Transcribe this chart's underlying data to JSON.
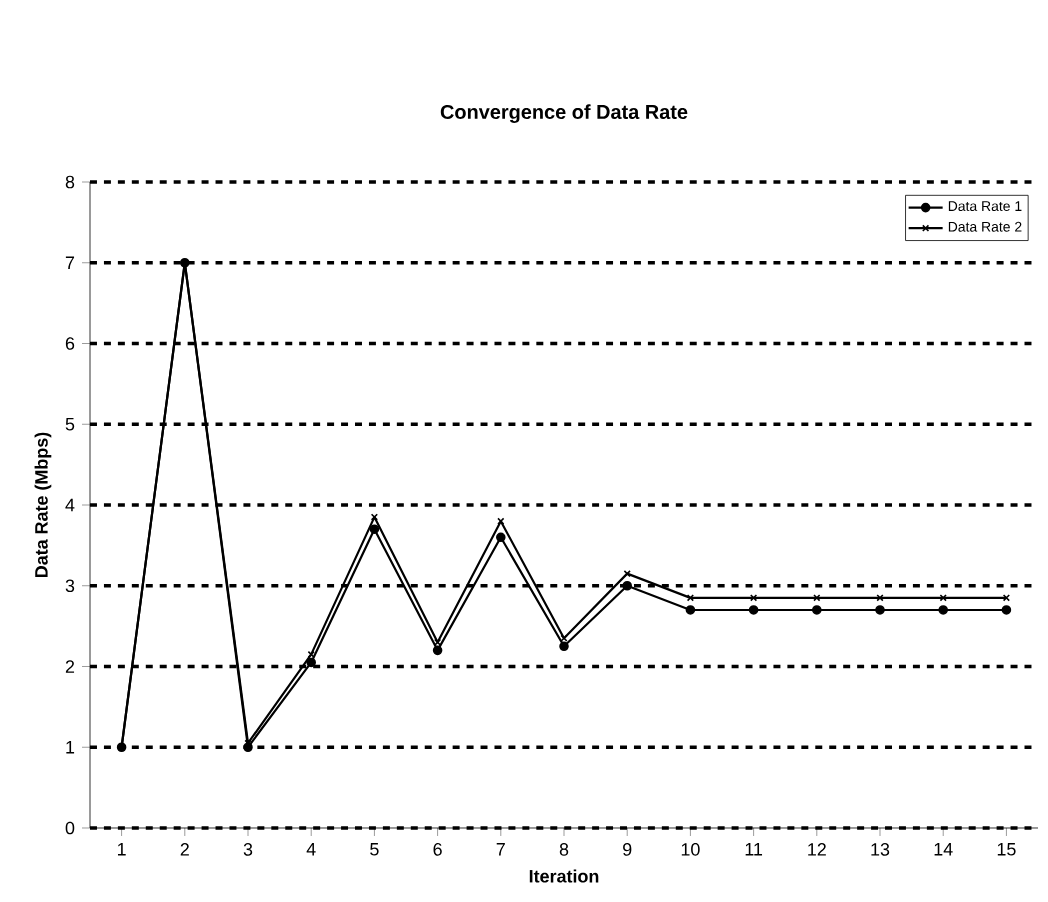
{
  "chart_data": {
    "type": "line",
    "title": "Convergence of Data Rate",
    "xlabel": "Iteration",
    "ylabel": "Data Rate (Mbps)",
    "categories": [
      "1",
      "2",
      "3",
      "4",
      "5",
      "6",
      "7",
      "8",
      "9",
      "10",
      "11",
      "12",
      "13",
      "14",
      "15"
    ],
    "series": [
      {
        "name": "Data Rate 1",
        "color": "#000000",
        "marker": "circle",
        "values": [
          1,
          7,
          1,
          2.05,
          3.7,
          2.2,
          3.6,
          2.25,
          3.0,
          2.7,
          2.7,
          2.7,
          2.7,
          2.7,
          2.7
        ]
      },
      {
        "name": "Data Rate 2",
        "color": "#000000",
        "marker": "cross",
        "values": [
          1,
          7,
          1.05,
          2.15,
          3.85,
          2.3,
          3.8,
          2.35,
          3.15,
          2.85,
          2.85,
          2.85,
          2.85,
          2.85,
          2.85
        ]
      }
    ],
    "ylim": [
      0,
      8
    ],
    "yticks": [
      0,
      1,
      2,
      3,
      4,
      5,
      6,
      7,
      8
    ],
    "grid": "y",
    "legend": "top right",
    "line_style": "solid"
  }
}
